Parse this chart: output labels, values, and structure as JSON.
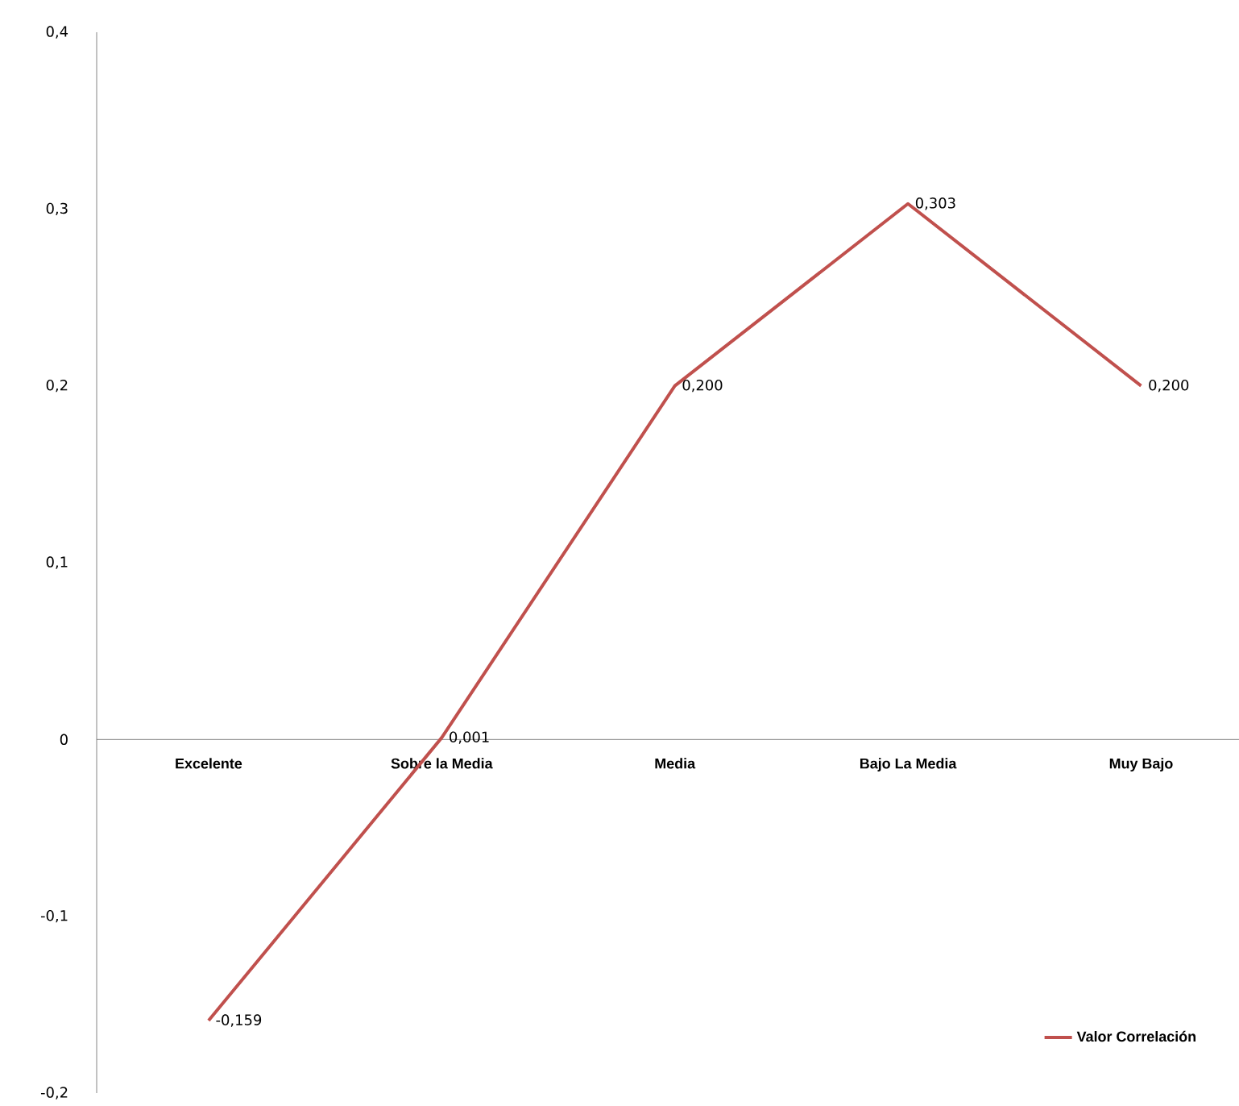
{
  "chart_data": {
    "type": "line",
    "categories": [
      "Excelente",
      "Sobre la Media",
      "Media",
      "Bajo La Media",
      "Muy Bajo"
    ],
    "series": [
      {
        "name": "Valor Correlación",
        "color": "#c0504d",
        "values": [
          -0.159,
          0.001,
          0.2,
          0.303,
          0.2
        ],
        "value_labels": [
          "-0,159",
          "0,001",
          "0,200",
          "0,303",
          "0,200"
        ]
      }
    ],
    "ylim": [
      -0.2,
      0.4
    ],
    "yticks": [
      {
        "value": -0.2,
        "label": "-0,2"
      },
      {
        "value": -0.1,
        "label": "-0,1"
      },
      0,
      {
        "value": 0.1,
        "label": "0,1"
      },
      {
        "value": 0.2,
        "label": "0,2"
      },
      {
        "value": 0.3,
        "label": "0,3"
      },
      {
        "value": 0.4,
        "label": "0,4"
      }
    ],
    "legend": "bottom right",
    "grid": false
  }
}
